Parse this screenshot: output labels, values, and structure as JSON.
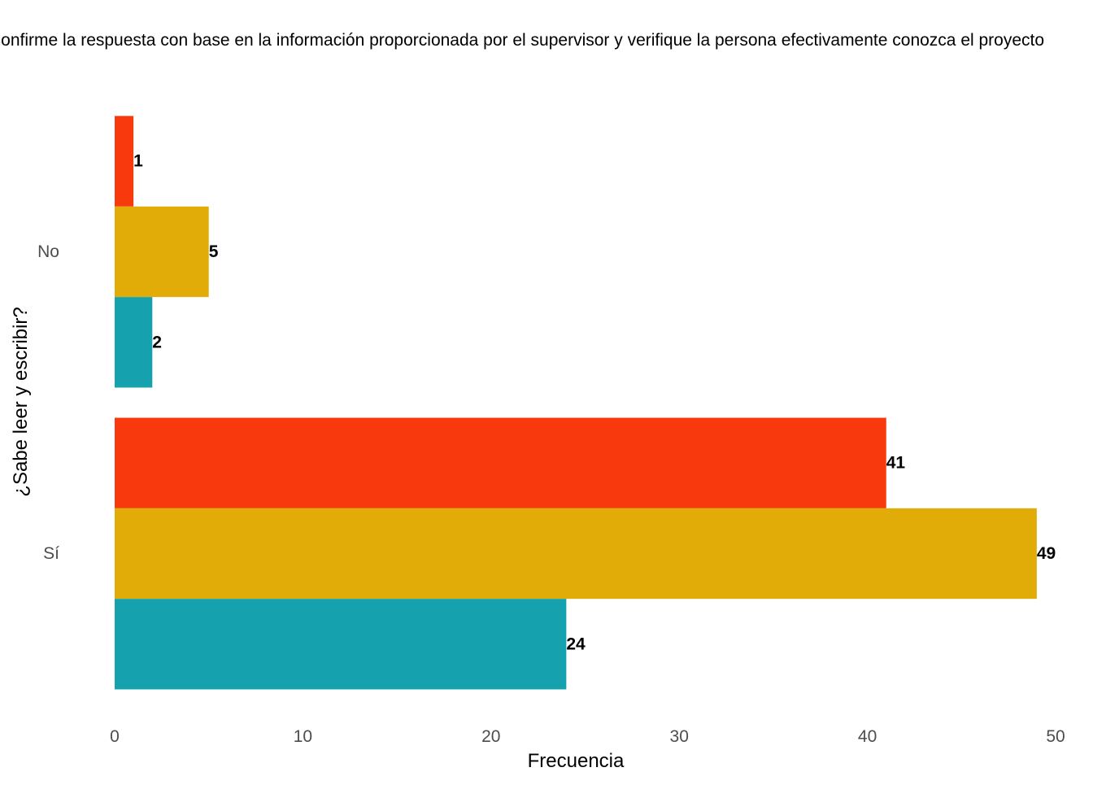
{
  "chart_data": {
    "type": "bar",
    "orientation": "horizontal",
    "title": "Confirme la respuesta con base en la información proporcionada por el supervisor y verifique la persona efectivamente conozca el proyecto",
    "xlabel": "Frecuencia",
    "ylabel": "¿Sabe leer y escribir?",
    "categories": [
      "No",
      "Sí"
    ],
    "series": [
      {
        "color": "#F8390D",
        "values": [
          1,
          41
        ]
      },
      {
        "color": "#E1AC08",
        "values": [
          5,
          49
        ]
      },
      {
        "color": "#15A2AE",
        "values": [
          2,
          24
        ]
      }
    ],
    "xlim": [
      0,
      50
    ],
    "x_ticks": [
      0,
      10,
      20,
      30,
      40,
      50
    ],
    "grid": false,
    "legend": "none"
  }
}
